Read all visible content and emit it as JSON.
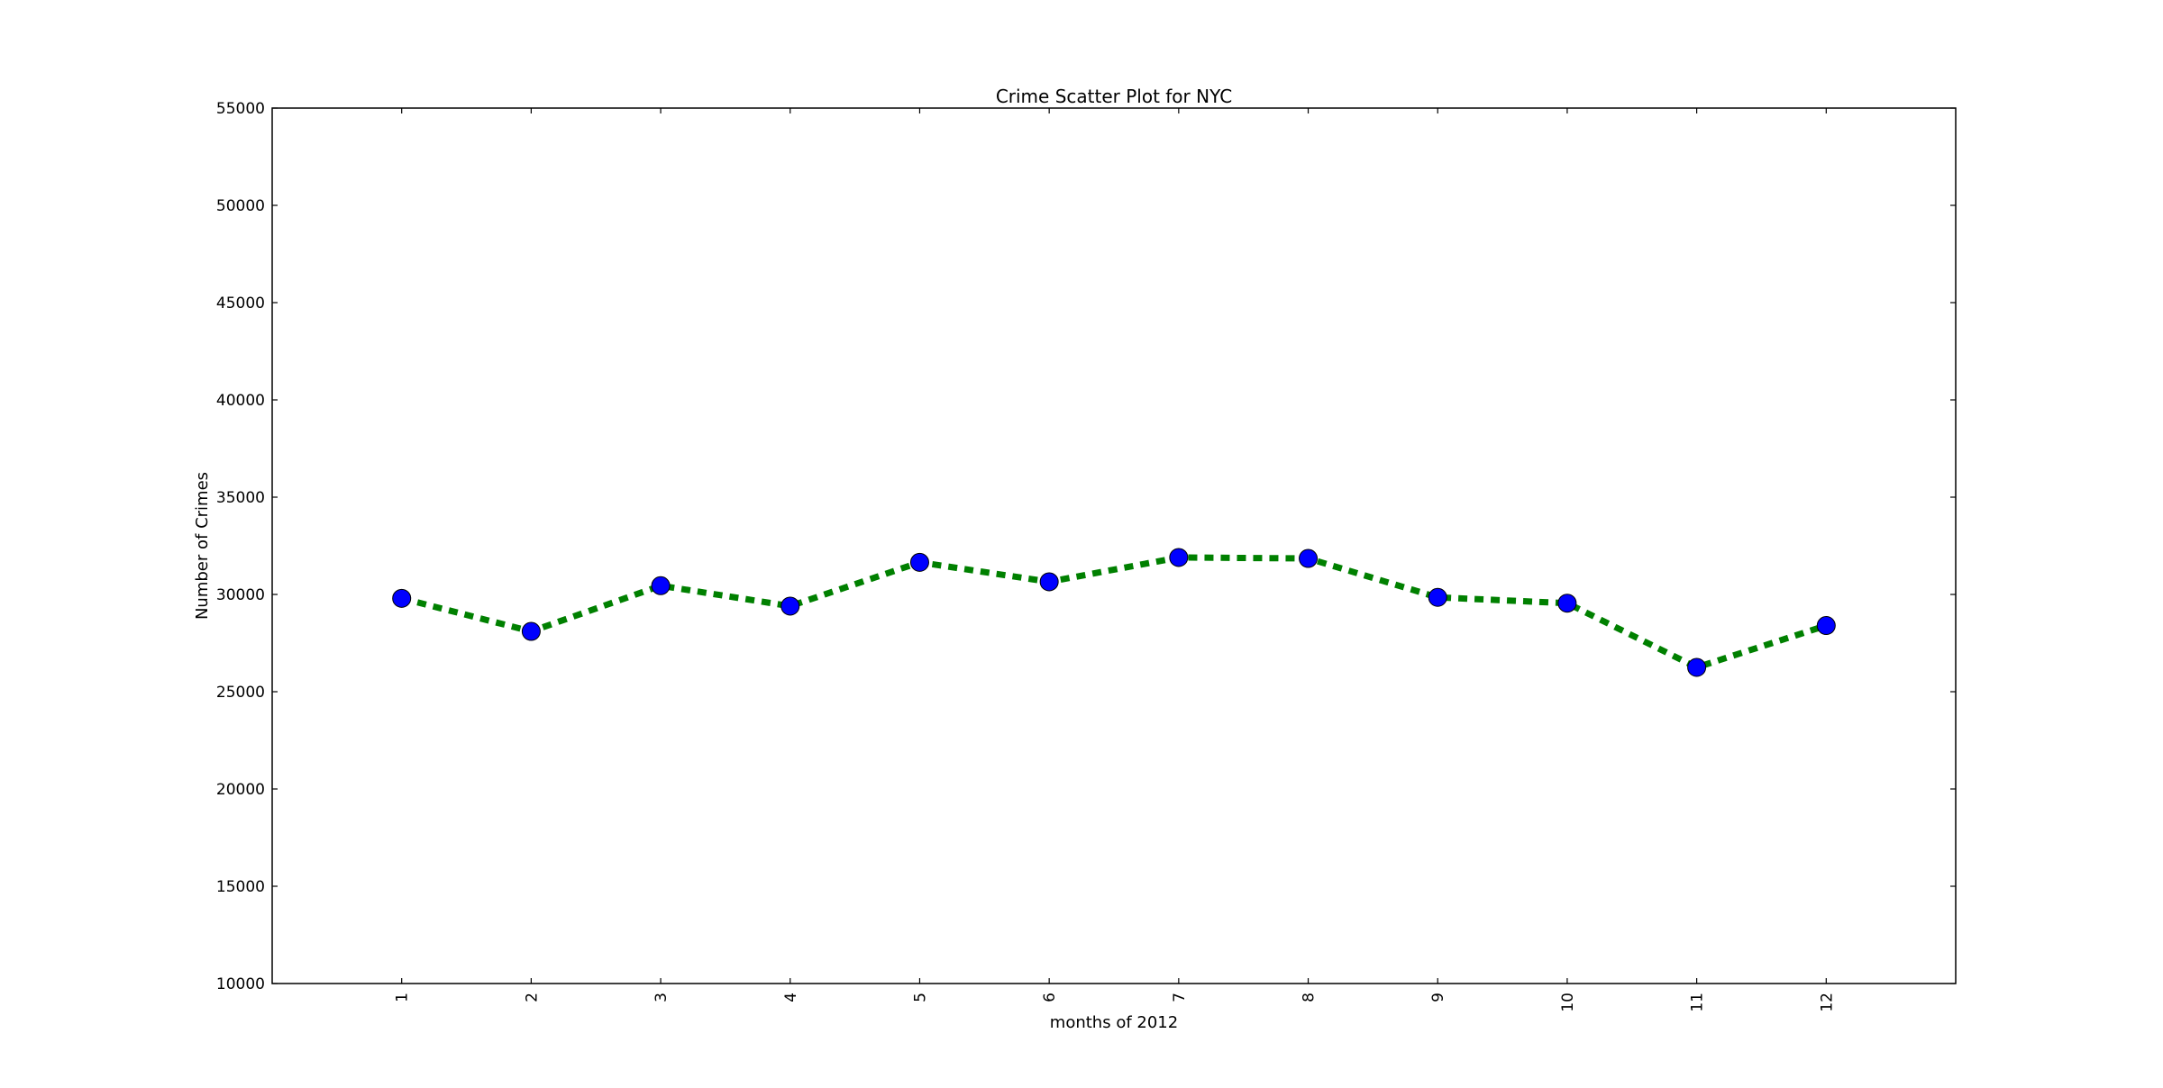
{
  "chart_data": {
    "type": "line",
    "title": "Crime Scatter Plot for NYC",
    "xlabel": "months of 2012",
    "ylabel": "Number of Crimes",
    "x": [
      1,
      2,
      3,
      4,
      5,
      6,
      7,
      8,
      9,
      10,
      11,
      12
    ],
    "xlim": [
      0,
      13
    ],
    "ylim": [
      10000,
      55000
    ],
    "x_ticks": [
      "1",
      "2",
      "3",
      "4",
      "5",
      "6",
      "7",
      "8",
      "9",
      "10",
      "11",
      "12"
    ],
    "y_ticks": [
      "10000",
      "15000",
      "20000",
      "25000",
      "30000",
      "35000",
      "40000",
      "45000",
      "50000",
      "55000"
    ],
    "x_tick_rotation": "vertical",
    "grid": false,
    "legend": "none",
    "series": [
      {
        "values": [
          29800,
          28100,
          30450,
          29400,
          31650,
          30650,
          31900,
          31850,
          29850,
          29550,
          26250,
          28400
        ],
        "line_color": "#008000",
        "line_style": "dashed",
        "marker": "circle",
        "marker_color": "#0000ff"
      }
    ]
  }
}
